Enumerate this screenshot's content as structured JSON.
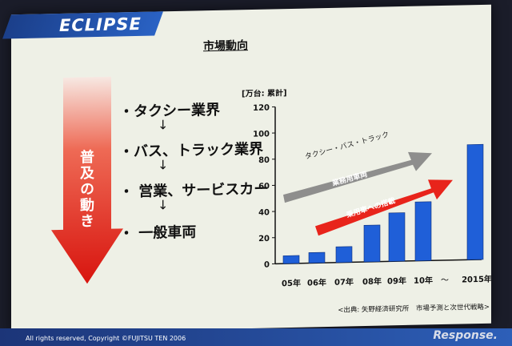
{
  "header": {
    "brand": "ECLIPSE"
  },
  "slide": {
    "title": "市場動向",
    "flow_label": "普及の動き",
    "steps": [
      "・タクシー業界",
      "・バス、トラック業界",
      "・ 営業、サービスカー",
      "・ 一般車両"
    ],
    "down_arrow": "↓"
  },
  "footer": {
    "copyright": "All rights reserved, Copyright ©FUJITSU TEN 2006",
    "watermark": "Response."
  },
  "colors": {
    "bar": "#1f5fd8",
    "gray_arrow": "#7c7c7c",
    "red_arrow": "#e8241b"
  },
  "chart_data": {
    "type": "bar",
    "unit_label": "[万台: 累計]",
    "categories": [
      "05年",
      "06年",
      "07年",
      "08年",
      "09年",
      "10年",
      "2015年"
    ],
    "values": [
      6,
      8,
      12,
      28,
      37,
      45,
      88
    ],
    "ylim": [
      0,
      120
    ],
    "yticks": [
      0,
      20,
      40,
      60,
      80,
      100,
      120
    ],
    "gap_label": "〜",
    "annotations": {
      "gray_arrow_caption": "タクシー・バス・トラック",
      "gray_arrow_label": "業務用車両",
      "red_arrow_label": "乗用車への搭載"
    },
    "source": "<出典: 矢野経済研究所　市場予測と次世代戦略>"
  }
}
